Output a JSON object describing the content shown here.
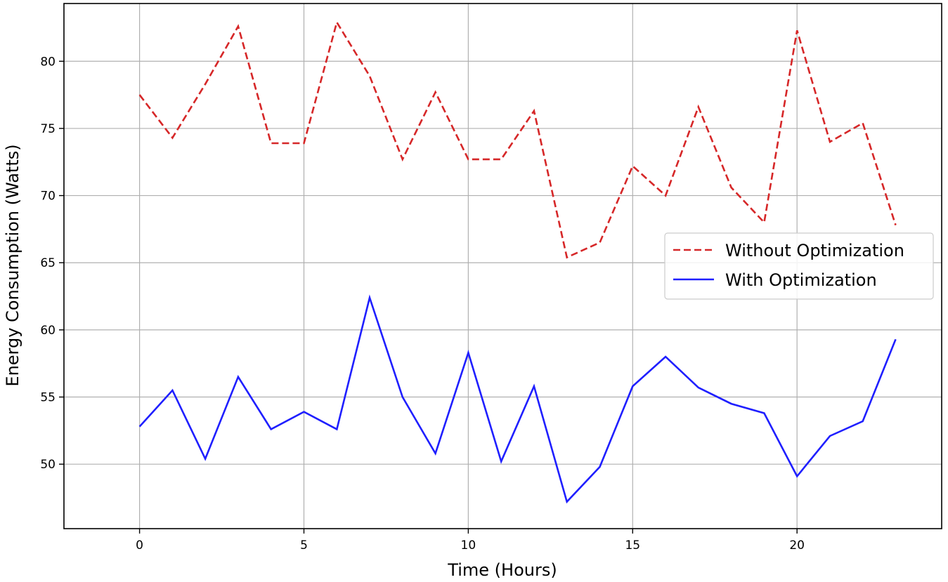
{
  "chart_data": {
    "type": "line",
    "title": "",
    "xlabel": "Time (Hours)",
    "ylabel": "Energy Consumption (Watts)",
    "xlim": [
      -2.3,
      24.4
    ],
    "ylim": [
      45.2,
      84.3
    ],
    "xticks": [
      0,
      5,
      10,
      15,
      20
    ],
    "yticks": [
      50,
      55,
      60,
      65,
      70,
      75,
      80
    ],
    "grid": true,
    "legend_position": "center-right",
    "x": [
      0,
      1,
      2,
      3,
      4,
      5,
      6,
      7,
      8,
      9,
      10,
      11,
      12,
      13,
      14,
      15,
      16,
      17,
      18,
      19,
      20,
      21,
      22,
      23
    ],
    "series": [
      {
        "name": "Without Optimization",
        "color": "#d62728",
        "style": "dashed",
        "values": [
          77.5,
          74.3,
          78.3,
          82.6,
          73.9,
          73.9,
          82.9,
          78.9,
          72.7,
          77.7,
          72.7,
          72.7,
          76.3,
          65.4,
          66.5,
          72.2,
          70.0,
          76.6,
          70.6,
          68.0,
          82.3,
          74.0,
          75.4,
          67.8
        ]
      },
      {
        "name": "With Optimization",
        "color": "#1f1fff",
        "style": "solid",
        "values": [
          52.8,
          55.5,
          50.4,
          56.5,
          52.6,
          53.9,
          52.6,
          62.4,
          55.0,
          50.8,
          58.3,
          50.2,
          55.8,
          47.2,
          49.8,
          55.8,
          58.0,
          55.7,
          54.5,
          53.8,
          49.1,
          52.1,
          53.2,
          59.3
        ]
      }
    ]
  }
}
